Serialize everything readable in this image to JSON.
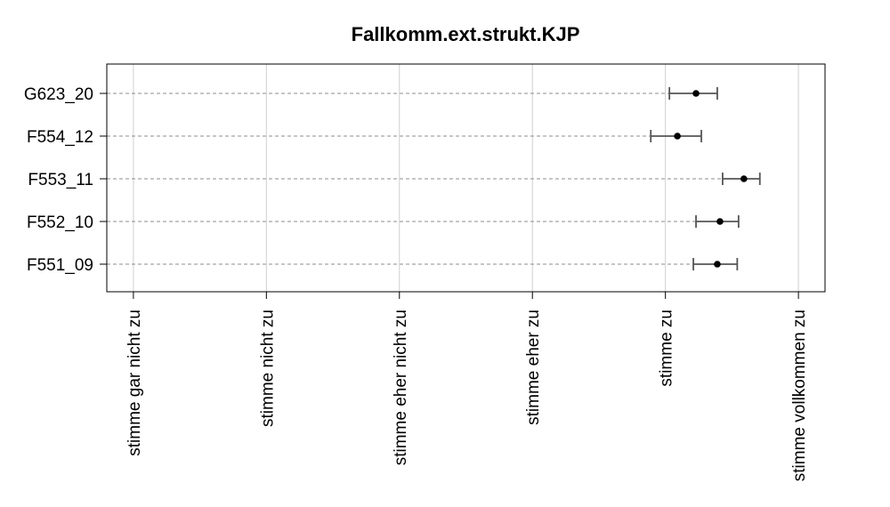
{
  "chart_data": {
    "type": "scatter",
    "title": "Fallkomm.ext.strukt.KJP",
    "xlabel": "",
    "ylabel": "",
    "x_ticks": [
      {
        "value": 1,
        "label": "stimme gar nicht zu"
      },
      {
        "value": 2,
        "label": "stimme nicht zu"
      },
      {
        "value": 3,
        "label": "stimme eher nicht zu"
      },
      {
        "value": 4,
        "label": "stimme eher zu"
      },
      {
        "value": 5,
        "label": "stimme zu"
      },
      {
        "value": 6,
        "label": "stimme vollkommen zu"
      }
    ],
    "xlim": [
      0.8,
      6.2
    ],
    "grid": "vertical",
    "points": [
      {
        "label": "G623_20",
        "mean": 5.23,
        "lower": 5.03,
        "upper": 5.39
      },
      {
        "label": "F554_12",
        "mean": 5.09,
        "lower": 4.89,
        "upper": 5.27
      },
      {
        "label": "F553_11",
        "mean": 5.59,
        "lower": 5.43,
        "upper": 5.71
      },
      {
        "label": "F552_10",
        "mean": 5.41,
        "lower": 5.23,
        "upper": 5.55
      },
      {
        "label": "F551_09",
        "mean": 5.39,
        "lower": 5.21,
        "upper": 5.54
      }
    ]
  }
}
